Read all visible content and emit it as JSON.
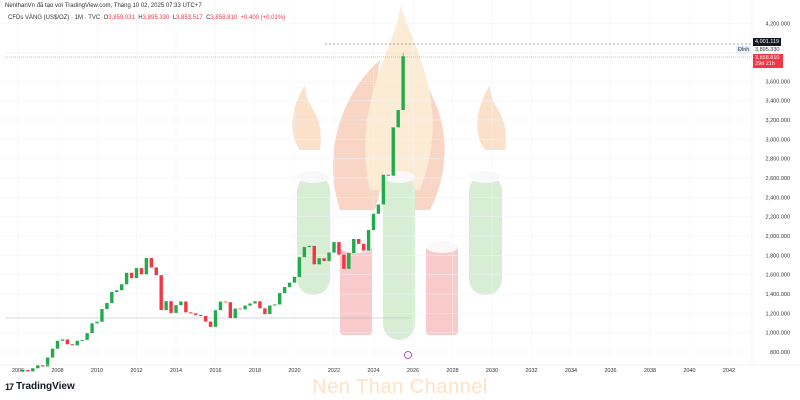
{
  "header": {
    "credit": "NenthanVn đã tạo với TradingView.com, Tháng 10 02, 2025 07:33 UTC+7",
    "symbol": "CFDs VÀNG (US$/OZ) · 1M · TVC",
    "o_label": "O",
    "o": "3,859.031",
    "h_label": "H",
    "h": "3,895.330",
    "l_label": "L",
    "l": "3,853.517",
    "c_label": "C",
    "c": "3,858.810",
    "change": "+0.400 (+0.01%)"
  },
  "price_tags": {
    "high_line": "4,001.119",
    "dinh_label": "Đỉnh",
    "dinh": "3,895.330",
    "last": "3,858.810",
    "countdown": "29d 21h"
  },
  "brand": {
    "name": "TradingView"
  },
  "watermark": "Nen Than Channel",
  "colors": {
    "up": "#089981",
    "down": "#f23645",
    "last": "#f23645"
  },
  "chart_data": {
    "type": "candlestick",
    "y_ticks": [
      "4,200.000",
      "3,600.000",
      "3,400.000",
      "3,200.000",
      "3,000.000",
      "2,800.000",
      "2,600.000",
      "2,400.000",
      "2,200.000",
      "2,000.000",
      "1,800.000",
      "1,600.000",
      "1,400.000",
      "1,200.000",
      "1,000.000",
      "800.000"
    ],
    "x_ticks": [
      "2006",
      "2008",
      "2010",
      "2012",
      "2014",
      "2016",
      "2018",
      "2020",
      "2022",
      "2024",
      "2026",
      "2028",
      "2030",
      "2032",
      "2034",
      "2036",
      "2038",
      "2040",
      "2042"
    ],
    "ylim": [
      800,
      4200
    ],
    "start": 2006.25,
    "step_years": 0.25,
    "closes": [
      614,
      599,
      632,
      663,
      650,
      743,
      834,
      916,
      930,
      880,
      869,
      916,
      926,
      995,
      1096,
      1113,
      1244,
      1307,
      1421,
      1439,
      1500,
      1620,
      1564,
      1668,
      1604,
      1772,
      1675,
      1595,
      1234,
      1326,
      1204,
      1284,
      1322,
      1210,
      1199,
      1183,
      1172,
      1115,
      1060,
      1232,
      1321,
      1315,
      1151,
      1249,
      1241,
      1280,
      1302,
      1325,
      1252,
      1192,
      1281,
      1292,
      1409,
      1472,
      1517,
      1577,
      1781,
      1886,
      1898,
      1707,
      1770,
      1742,
      1829,
      1937,
      1807,
      1660,
      1824,
      1969,
      1919,
      1849,
      2062,
      2230,
      2326,
      2634,
      2624,
      3124,
      3303,
      3858.81
    ],
    "last_high": 3895.33
  }
}
